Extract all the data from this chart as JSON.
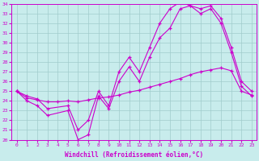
{
  "xlabel": "Windchill (Refroidissement éolien,°C)",
  "xlim": [
    -0.5,
    23.5
  ],
  "ylim": [
    20,
    34
  ],
  "xticks": [
    0,
    1,
    2,
    3,
    4,
    5,
    6,
    7,
    8,
    9,
    10,
    11,
    12,
    13,
    14,
    15,
    16,
    17,
    18,
    19,
    20,
    21,
    22,
    23
  ],
  "yticks": [
    20,
    21,
    22,
    23,
    24,
    25,
    26,
    27,
    28,
    29,
    30,
    31,
    32,
    33,
    34
  ],
  "bg_color": "#c8ecec",
  "line_color": "#cc00cc",
  "grid_color": "#a0cccc",
  "line1_x": [
    0,
    1,
    2,
    3,
    5,
    6,
    7,
    8,
    9,
    10,
    11,
    12,
    13,
    14,
    15,
    16,
    17,
    18,
    19,
    20,
    21,
    22,
    23
  ],
  "line1_y": [
    25,
    24,
    23.5,
    22.5,
    23,
    20.0,
    20.5,
    24.5,
    23.2,
    26.0,
    27.5,
    26.0,
    28.5,
    30.5,
    31.5,
    33.5,
    33.8,
    33.0,
    33.5,
    32.0,
    29.0,
    25.5,
    24.5
  ],
  "line2_x": [
    0,
    1,
    2,
    3,
    5,
    6,
    7,
    8,
    9,
    10,
    11,
    12,
    13,
    14,
    15,
    16,
    17,
    18,
    19,
    20,
    21,
    22,
    23
  ],
  "line2_y": [
    25,
    24.5,
    24.2,
    23.2,
    23.5,
    21.0,
    22.0,
    25.0,
    23.5,
    27.0,
    28.5,
    27.0,
    29.5,
    32.0,
    33.5,
    34.2,
    33.8,
    33.5,
    33.8,
    32.5,
    29.5,
    26.0,
    25.0
  ],
  "line3_x": [
    0,
    1,
    2,
    3,
    4,
    5,
    6,
    7,
    8,
    9,
    10,
    11,
    12,
    13,
    14,
    15,
    16,
    17,
    18,
    19,
    20,
    21,
    22,
    23
  ],
  "line3_y": [
    25.0,
    24.3,
    24.1,
    23.9,
    23.9,
    24.0,
    23.9,
    24.1,
    24.3,
    24.4,
    24.6,
    24.9,
    25.1,
    25.4,
    25.7,
    26.0,
    26.3,
    26.7,
    27.0,
    27.2,
    27.4,
    27.1,
    25.0,
    24.6
  ]
}
